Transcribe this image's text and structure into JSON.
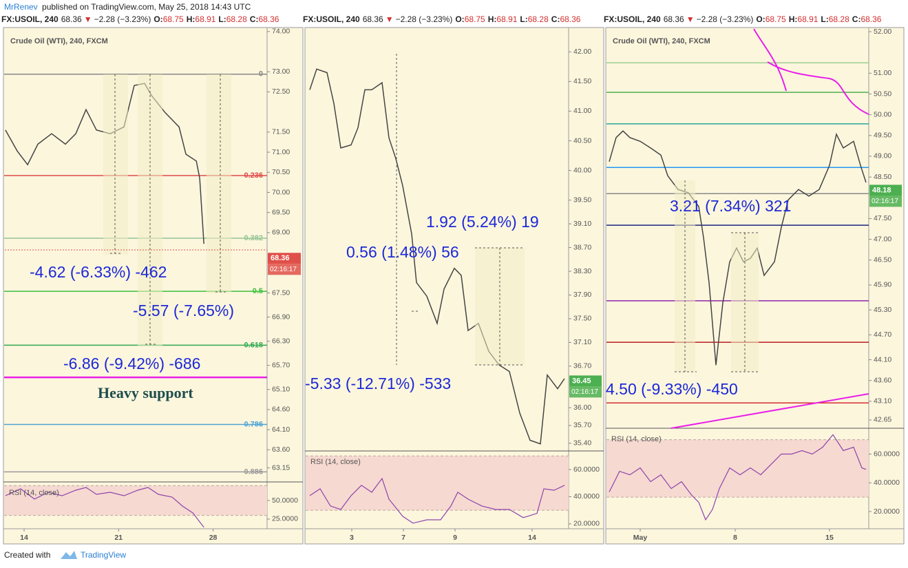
{
  "header": {
    "author": "MrRenev",
    "published": "published on TradingView.com, May 25, 2018 14:43 UTC"
  },
  "footer": {
    "created": "Created with",
    "brand": "TradingView"
  },
  "chart_data": [
    {
      "type": "line",
      "symbol": "FX:USOIL, 240",
      "last": "68.36",
      "arrow": "▼",
      "change": "−2.28 (−3.23%)",
      "ohlc": [
        {
          "k": "O:",
          "v": "68.75"
        },
        {
          "k": "H:",
          "v": "68.91"
        },
        {
          "k": "L:",
          "v": "68.28"
        },
        {
          "k": "C:",
          "v": "68.36"
        }
      ],
      "legend": "Crude Oil (WTI), 240, FXCM",
      "color": "#444444",
      "x": [
        12.62,
        13.49,
        14.26,
        15.02,
        16.04,
        17.06,
        17.83,
        18.59,
        19.36,
        20.38,
        21.4,
        22.16,
        22.93,
        23.44,
        24.46,
        25.48,
        25.99,
        26.76,
        27.01,
        27.32
      ],
      "values": [
        71.55,
        71.03,
        70.69,
        71.2,
        71.46,
        71.2,
        71.46,
        72.06,
        71.55,
        71.46,
        71.63,
        72.66,
        72.71,
        72.41,
        71.98,
        71.63,
        70.95,
        70.78,
        70.35,
        68.72
      ],
      "xlim": [
        12.47,
        32.0
      ],
      "xticks": [
        14,
        21,
        28
      ],
      "ylim": [
        62.8,
        74.1
      ],
      "yticks": [
        {
          "value": 74,
          "label": "74.00"
        },
        {
          "value": 73,
          "label": "73.00"
        },
        {
          "value": 72.5,
          "label": "72.50"
        },
        {
          "value": 71.5,
          "label": "71.50"
        },
        {
          "value": 71,
          "label": "71.00"
        },
        {
          "value": 70.5,
          "label": "70.50"
        },
        {
          "value": 70,
          "label": "70.00"
        },
        {
          "value": 69.5,
          "label": "69.50"
        },
        {
          "value": 69,
          "label": "69.00"
        },
        {
          "value": 67.5,
          "label": "67.50"
        },
        {
          "value": 66.9,
          "label": "66.90"
        },
        {
          "value": 66.3,
          "label": "66.30"
        },
        {
          "value": 65.7,
          "label": "65.70"
        },
        {
          "value": 65.1,
          "label": "65.10"
        },
        {
          "value": 64.6,
          "label": "64.60"
        },
        {
          "value": 64.1,
          "label": "64.10"
        },
        {
          "value": 63.6,
          "label": "63.60"
        },
        {
          "value": 63.15,
          "label": "63.15"
        }
      ],
      "levels": [
        {
          "value": 72.94,
          "label": "0",
          "color": "#888888"
        },
        {
          "value": 70.42,
          "label": "0.236",
          "color": "#e04a4a"
        },
        {
          "value": 68.86,
          "label": "0.382",
          "color": "#93c493"
        },
        {
          "value": 67.54,
          "label": "0.5",
          "color": "#3cbf3c"
        },
        {
          "value": 66.2,
          "label": "0.618",
          "color": "#2fa84f"
        },
        {
          "value": 65.4,
          "color": "#e91ee9"
        },
        {
          "value": 64.23,
          "label": "0.786",
          "color": "#4aa3d6"
        },
        {
          "value": 63.05,
          "label": "0.886",
          "color": "#999999"
        }
      ],
      "last_price": 68.36,
      "countdown": "02:16:17",
      "tag_color": "#e0504a",
      "annotations": [
        "-4.62 (-6.33%) -462",
        "-5.57 (-7.65%)",
        "-6.86 (-9.42%) -686",
        "Heavy support"
      ],
      "rsi": {
        "title": "RSI (14, close)",
        "color": "#8e44ad",
        "x": [
          12.62,
          13.74,
          14.77,
          15.79,
          16.81,
          17.83,
          18.59,
          19.36,
          20.38,
          21.4,
          22.42,
          23.18,
          23.95,
          24.97,
          25.73,
          26.5,
          27.01,
          27.32
        ],
        "values": [
          56.5,
          65.7,
          51.9,
          61.1,
          56.5,
          63.9,
          67.6,
          58.3,
          61.1,
          56.5,
          63.9,
          67.6,
          58.3,
          54.6,
          42.6,
          33.3,
          21.3,
          13.9
        ],
        "ylim": [
          12,
          75
        ],
        "yticks": [
          {
            "value": 50,
            "label": "50.0000"
          },
          {
            "value": 25,
            "label": "25.0000"
          }
        ],
        "band": [
          30,
          70
        ]
      }
    },
    {
      "type": "line",
      "symbol": "FX:USOIL, 240",
      "last": "68.36",
      "arrow": "▼",
      "change": "−2.28 (−3.23%)",
      "ohlc": [
        {
          "k": "O:",
          "v": "68.75"
        },
        {
          "k": "H:",
          "v": "68.91"
        },
        {
          "k": "L:",
          "v": "68.28"
        },
        {
          "k": "C:",
          "v": "68.36"
        }
      ],
      "color": "#444444",
      "x": [
        1.83,
        4.44,
        8.36,
        10.97,
        13.58,
        17.49,
        20.1,
        22.72,
        25.33,
        29.24,
        31.85,
        34.46,
        37.08,
        40.47,
        42.3,
        46.21,
        50.13,
        52.74,
        56.66,
        59.27,
        61.88,
        65.8,
        69.71,
        73.63,
        77.55,
        81.46,
        85.38,
        89.3,
        91.91,
        95.82,
        98.43
      ],
      "values": [
        41.36,
        41.71,
        41.65,
        41.13,
        40.38,
        40.43,
        40.72,
        41.36,
        41.36,
        41.48,
        40.55,
        40.2,
        39.74,
        38.93,
        38.11,
        37.88,
        37.42,
        38.0,
        38.35,
        38.23,
        37.3,
        37.42,
        36.95,
        36.72,
        36.61,
        35.91,
        35.45,
        35.39,
        36.55,
        36.32,
        36.49
      ],
      "xlim": [
        0,
        100
      ],
      "xticks": [
        {
          "value": 17.75,
          "label": "3"
        },
        {
          "value": 37.34,
          "label": "7"
        },
        {
          "value": 56.92,
          "label": "9"
        },
        {
          "value": 86.16,
          "label": "14"
        }
      ],
      "ylim": [
        35.27,
        42.41
      ],
      "yticks": [
        {
          "value": 42,
          "label": "42.00"
        },
        {
          "value": 41.5,
          "label": "41.50"
        },
        {
          "value": 41,
          "label": "41.00"
        },
        {
          "value": 40.5,
          "label": "40.50"
        },
        {
          "value": 40,
          "label": "40.00"
        },
        {
          "value": 39.5,
          "label": "39.50"
        },
        {
          "value": 39.1,
          "label": "39.10"
        },
        {
          "value": 38.7,
          "label": "38.70"
        },
        {
          "value": 38.3,
          "label": "38.30"
        },
        {
          "value": 37.9,
          "label": "37.90"
        },
        {
          "value": 37.5,
          "label": "37.50"
        },
        {
          "value": 37.1,
          "label": "37.10"
        },
        {
          "value": 36.7,
          "label": "36.70"
        },
        {
          "value": 36,
          "label": "36.00"
        },
        {
          "value": 35.7,
          "label": "35.70"
        },
        {
          "value": 35.4,
          "label": "35.40"
        }
      ],
      "last_price": 36.45,
      "countdown": "02:16:17",
      "tag_color": "#4caf50",
      "annotations": [
        "1.92 (5.24%) 19",
        "0.56 (1.48%) 56",
        "-5.33 (-12.71%) -533"
      ],
      "rsi": {
        "title": "RSI (14, close)",
        "color": "#8e44ad",
        "x": [
          1.83,
          5.74,
          9.66,
          13.58,
          17.49,
          21.41,
          25.33,
          29.24,
          31.85,
          37.08,
          40.99,
          46.21,
          51.44,
          55.35,
          57.96,
          61.88,
          67.1,
          72.32,
          77.55,
          82.77,
          87.99,
          90.6,
          94.52,
          98.43
        ],
        "values": [
          40.8,
          45.8,
          33.2,
          30.6,
          40.8,
          48.4,
          43.3,
          53.4,
          38.2,
          25.6,
          20.5,
          23.0,
          23.0,
          33.2,
          43.3,
          38.2,
          33.2,
          30.6,
          30.6,
          24.6,
          27.7,
          45.8,
          44.8,
          48.4
        ],
        "ylim": [
          16.4,
          73.7
        ],
        "yticks": [
          {
            "value": 60,
            "label": "60.0000"
          },
          {
            "value": 40,
            "label": "40.0000"
          },
          {
            "value": 20,
            "label": "20.0000"
          }
        ],
        "band": [
          30,
          70
        ]
      }
    },
    {
      "type": "line",
      "symbol": "FX:USOIL, 240",
      "last": "68.36",
      "arrow": "▼",
      "change": "−2.28 (−3.23%)",
      "ohlc": [
        {
          "k": "O:",
          "v": "68.75"
        },
        {
          "k": "H:",
          "v": "68.91"
        },
        {
          "k": "L:",
          "v": "68.28"
        },
        {
          "k": "C:",
          "v": "68.36"
        }
      ],
      "legend": "Crude Oil (WTI), 240, FXCM",
      "color": "#444444",
      "x": [
        1.31,
        3.93,
        6.54,
        9.16,
        13.09,
        17.02,
        20.94,
        23.56,
        27.49,
        31.41,
        35.34,
        37.17,
        39.27,
        41.88,
        44.5,
        47.12,
        49.74,
        52.36,
        54.97,
        57.59,
        60.21,
        64.14,
        66.75,
        69.37,
        73.3,
        77.23,
        81.15,
        85.08,
        87.7,
        90.31,
        94.24,
        96.86,
        98.95
      ],
      "values": [
        48.87,
        49.45,
        49.61,
        49.45,
        49.36,
        49.2,
        49.03,
        48.53,
        48.2,
        48.12,
        47.79,
        47.04,
        45.96,
        43.97,
        45.47,
        46.46,
        46.79,
        46.46,
        46.54,
        46.79,
        46.13,
        46.46,
        47.29,
        47.95,
        48.2,
        48.04,
        48.2,
        48.78,
        49.53,
        49.2,
        49.36,
        48.78,
        48.37
      ],
      "xlim": [
        0,
        100
      ],
      "xticks": [
        {
          "value": 13.09,
          "label": "May"
        },
        {
          "value": 49.21,
          "label": "8"
        },
        {
          "value": 85.08,
          "label": "15"
        }
      ],
      "ylim": [
        42.45,
        52.1
      ],
      "yticks": [
        {
          "value": 52,
          "label": "52.00"
        },
        {
          "value": 51,
          "label": "51.00"
        },
        {
          "value": 50.5,
          "label": "50.50"
        },
        {
          "value": 50,
          "label": "50.00"
        },
        {
          "value": 49.5,
          "label": "49.50"
        },
        {
          "value": 49,
          "label": "49.00"
        },
        {
          "value": 48.5,
          "label": "48.50"
        },
        {
          "value": 47.5,
          "label": "47.50"
        },
        {
          "value": 47,
          "label": "47.00"
        },
        {
          "value": 46.5,
          "label": "46.50"
        },
        {
          "value": 45.9,
          "label": "45.90"
        },
        {
          "value": 45.3,
          "label": "45.30"
        },
        {
          "value": 44.7,
          "label": "44.70"
        },
        {
          "value": 44.1,
          "label": "44.10"
        },
        {
          "value": 43.6,
          "label": "43.60"
        },
        {
          "value": 43.1,
          "label": "43.10"
        },
        {
          "value": 42.65,
          "label": "42.65"
        }
      ],
      "levels": [
        {
          "value": 51.25,
          "color": "#9ccf8f"
        },
        {
          "value": 50.54,
          "color": "#4caf50"
        },
        {
          "value": 49.78,
          "color": "#26a69a"
        },
        {
          "value": 48.73,
          "color": "#2196f3"
        },
        {
          "value": 48.1,
          "color": "#888888"
        },
        {
          "value": 47.34,
          "color": "#1a237e"
        },
        {
          "value": 45.52,
          "color": "#8e24aa"
        },
        {
          "value": 44.52,
          "color": "#b71c1c"
        },
        {
          "value": 43.06,
          "color": "#d32f2f"
        }
      ],
      "last_price": 48.18,
      "countdown": "02:16:17",
      "tag_color": "#4caf50",
      "annotations": [
        "3.21 (7.34%) 321",
        "4.50 (-9.33%) -450"
      ],
      "rsi": {
        "title": "RSI (14, close)",
        "color": "#8e44ad",
        "x": [
          1.31,
          5.24,
          9.16,
          13.09,
          17.02,
          20.94,
          24.87,
          28.8,
          32.72,
          35.34,
          37.96,
          40.58,
          43.19,
          47.12,
          51.05,
          54.97,
          58.9,
          62.83,
          66.75,
          70.68,
          74.61,
          78.53,
          82.46,
          86.39,
          90.31,
          94.24,
          97.38,
          98.95
        ],
        "values": [
          33.6,
          48.0,
          45.6,
          50.4,
          40.8,
          45.6,
          36.0,
          40.8,
          31.2,
          26.4,
          14.3,
          21.5,
          36.0,
          50.4,
          45.6,
          50.4,
          45.6,
          52.8,
          60.0,
          60.0,
          62.4,
          60.0,
          64.8,
          73.5,
          62.4,
          64.8,
          50.4,
          49.4
        ],
        "ylim": [
          8,
          78
        ],
        "yticks": [
          {
            "value": 60,
            "label": "60.0000"
          },
          {
            "value": 40,
            "label": "40.0000"
          },
          {
            "value": 20,
            "label": "20.0000"
          }
        ],
        "band": [
          30,
          70
        ]
      }
    }
  ]
}
